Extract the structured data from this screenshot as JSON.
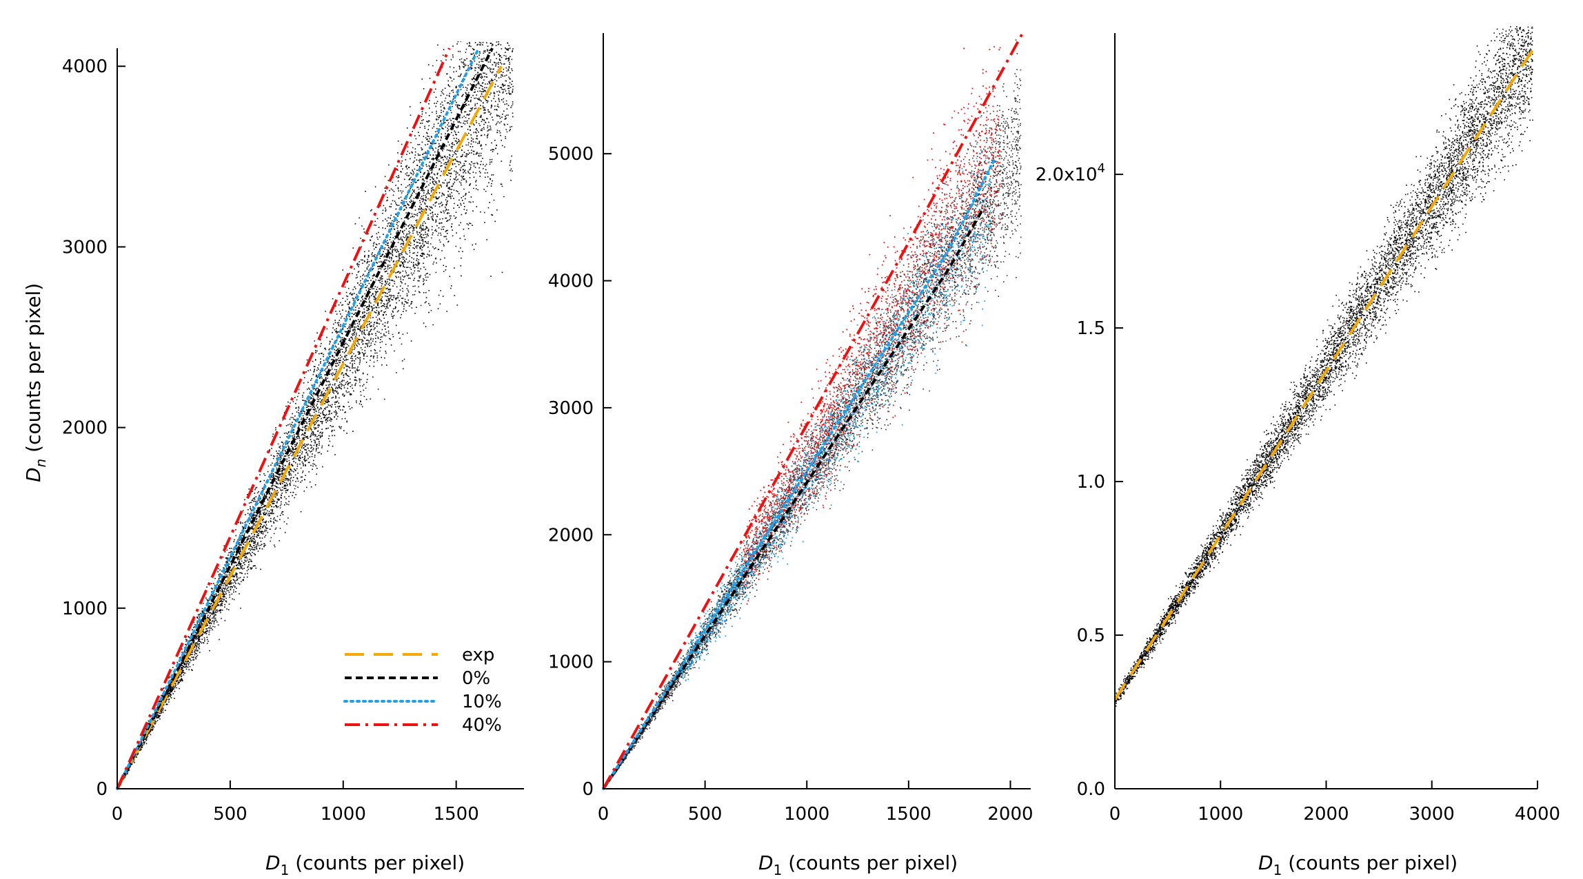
{
  "figure": {
    "colors": {
      "exp": "#f5a800",
      "p0": "#000000",
      "p10": "#1ea0ea",
      "p40": "#ee1111",
      "scatter": "#000000",
      "scatter_dark": "#2a2a2a"
    },
    "legend": {
      "entries": [
        "exp",
        "0%",
        "10%",
        "40%"
      ]
    }
  },
  "chart_data": [
    {
      "type": "scatter",
      "panel": "left",
      "xlabel_main": "D",
      "xlabel_sub": "1",
      "xlabel_rest": " (counts per pixel)",
      "ylabel_main": "D",
      "ylabel_sub": "n",
      "ylabel_rest": " (counts per pixel)",
      "xlim": [
        0,
        1800
      ],
      "ylim": [
        0,
        4100
      ],
      "xticks": [
        0,
        500,
        1000,
        1500
      ],
      "xtick_labels": [
        "0",
        "500",
        "1000",
        "1500"
      ],
      "yticks": [
        0,
        1000,
        2000,
        3000,
        4000
      ],
      "ytick_labels": [
        "0",
        "1000",
        "2000",
        "3000",
        "4000"
      ],
      "scatter_trend": {
        "x_max": 1750,
        "slope": 2.4,
        "spread_rel": 0.13
      },
      "series": [
        {
          "name": "exp",
          "style": "dashed",
          "x": [
            0,
            1700
          ],
          "y": [
            0,
            4000
          ]
        },
        {
          "name": "0%",
          "style": "dashed-fine",
          "x": [
            0,
            1660
          ],
          "y": [
            0,
            4100
          ]
        },
        {
          "name": "10%",
          "style": "dotted",
          "x": [
            0,
            1600
          ],
          "y": [
            0,
            4100
          ]
        },
        {
          "name": "40%",
          "style": "dash-dot",
          "x": [
            0,
            1470
          ],
          "y": [
            0,
            4100
          ]
        }
      ],
      "legend": "bottom-right"
    },
    {
      "type": "scatter",
      "panel": "middle",
      "xlabel_main": "D",
      "xlabel_sub": "1",
      "xlabel_rest": " (counts per pixel)",
      "xlim": [
        0,
        2100
      ],
      "ylim": [
        0,
        5950
      ],
      "xticks": [
        0,
        500,
        1000,
        1500,
        2000
      ],
      "xtick_labels": [
        "0",
        "500",
        "1000",
        "1500",
        "2000"
      ],
      "yticks": [
        0,
        1000,
        2000,
        3000,
        4000,
        5000
      ],
      "ytick_labels": [
        "0",
        "1000",
        "2000",
        "3000",
        "4000",
        "5000"
      ],
      "scatter_trend": {
        "x_max": 2050,
        "slope": 2.45,
        "spread_rel": 0.1
      },
      "series": [
        {
          "name": "0%",
          "style": "dashed-fine",
          "x": [
            0,
            1700,
            1860
          ],
          "y": [
            0,
            4100,
            4550
          ]
        },
        {
          "name": "10%",
          "style": "dotted",
          "x": [
            0,
            1700,
            1920
          ],
          "y": [
            0,
            4250,
            4950
          ]
        },
        {
          "name": "40%",
          "style": "dash-dot",
          "x": [
            0,
            1500,
            2060
          ],
          "y": [
            0,
            4300,
            5950
          ]
        }
      ]
    },
    {
      "type": "scatter",
      "panel": "right",
      "xlabel_main": "D",
      "xlabel_sub": "1",
      "xlabel_rest": " (counts per pixel)",
      "xlim": [
        0,
        4000
      ],
      "ylim": [
        0,
        24600
      ],
      "xticks": [
        0,
        1000,
        2000,
        3000,
        4000
      ],
      "xtick_labels": [
        "0",
        "1000",
        "2000",
        "3000",
        "4000"
      ],
      "yticks": [
        0,
        5000,
        10000,
        15000,
        20000
      ],
      "ytick_labels": [
        "0.0",
        "0.5",
        "1.0",
        "1.5",
        "2.0x10"
      ],
      "ytick_exponent": "4",
      "scatter_trend": {
        "x_max": 3950,
        "intercept": 2900,
        "slope": 5.4,
        "spread_rel": 0.07
      },
      "series": [
        {
          "name": "exp",
          "style": "dashed",
          "x": [
            0,
            4000
          ],
          "y": [
            2900,
            24300
          ]
        }
      ]
    }
  ]
}
